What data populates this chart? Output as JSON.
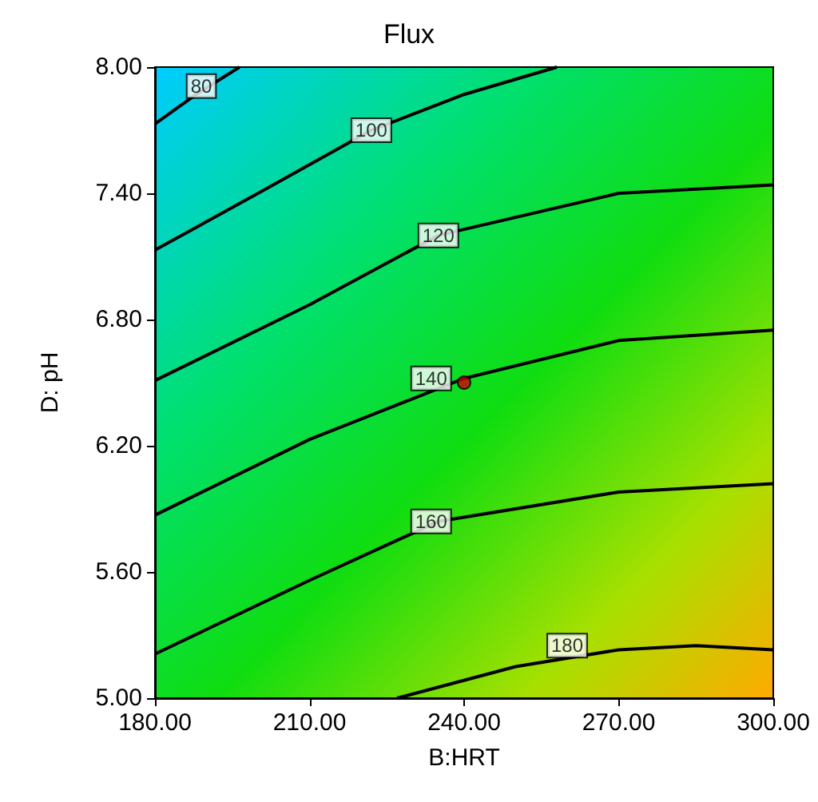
{
  "chart_data": {
    "type": "line",
    "title": "Flux",
    "xlabel": "B:HRT",
    "ylabel": "D: pH",
    "xlim": [
      180,
      300
    ],
    "xticks": [
      {
        "value": 180,
        "label": "180.00"
      },
      {
        "value": 210,
        "label": "210.00"
      },
      {
        "value": 240,
        "label": "240.00"
      },
      {
        "value": 270,
        "label": "270.00"
      },
      {
        "value": 300,
        "label": "300.00"
      }
    ],
    "ylim": [
      5,
      8
    ],
    "yticks": [
      {
        "value": 5,
        "label": "5.00"
      },
      {
        "value": 5.6,
        "label": "5.60"
      },
      {
        "value": 6.2,
        "label": "6.20"
      },
      {
        "value": 6.8,
        "label": "6.80"
      },
      {
        "value": 7.4,
        "label": "7.40"
      },
      {
        "value": 8,
        "label": "8.00"
      }
    ],
    "grid": false,
    "marker": "none",
    "line_style": "solid",
    "series": [
      {
        "color": "#000000",
        "x": [
          180,
          188,
          196.4
        ],
        "values": [
          7.73,
          7.87,
          8.0
        ]
      },
      {
        "color": "#000000",
        "x": [
          180,
          200,
          222,
          240,
          258
        ],
        "values": [
          7.13,
          7.4,
          7.7,
          7.87,
          8.0
        ]
      },
      {
        "color": "#000000",
        "x": [
          180,
          210,
          235,
          270,
          300
        ],
        "values": [
          6.51,
          6.87,
          7.2,
          7.4,
          7.44
        ]
      },
      {
        "color": "#000000",
        "x": [
          180,
          210,
          240,
          270,
          300
        ],
        "values": [
          5.87,
          6.23,
          6.52,
          6.7,
          6.75
        ]
      },
      {
        "color": "#000000",
        "x": [
          180,
          210,
          235,
          270,
          300
        ],
        "values": [
          5.21,
          5.56,
          5.84,
          5.98,
          6.02
        ]
      },
      {
        "color": "#000000",
        "x": [
          227,
          250,
          270,
          285,
          300
        ],
        "values": [
          5.0,
          5.15,
          5.23,
          5.25,
          5.23
        ]
      },
      {
        "type": "scatter",
        "marker": "circle",
        "color": "#cc0000",
        "x": [
          240
        ],
        "values": [
          6.5
        ]
      }
    ],
    "annotations": [
      {
        "text": "80",
        "x": 189,
        "y": 7.91
      },
      {
        "text": "100",
        "x": 222,
        "y": 7.7
      },
      {
        "text": "120",
        "x": 235,
        "y": 7.2
      },
      {
        "text": "140",
        "x": 233.6,
        "y": 6.52
      },
      {
        "text": "160",
        "x": 233.6,
        "y": 5.84
      },
      {
        "text": "180",
        "x": 260,
        "y": 5.25
      }
    ]
  }
}
